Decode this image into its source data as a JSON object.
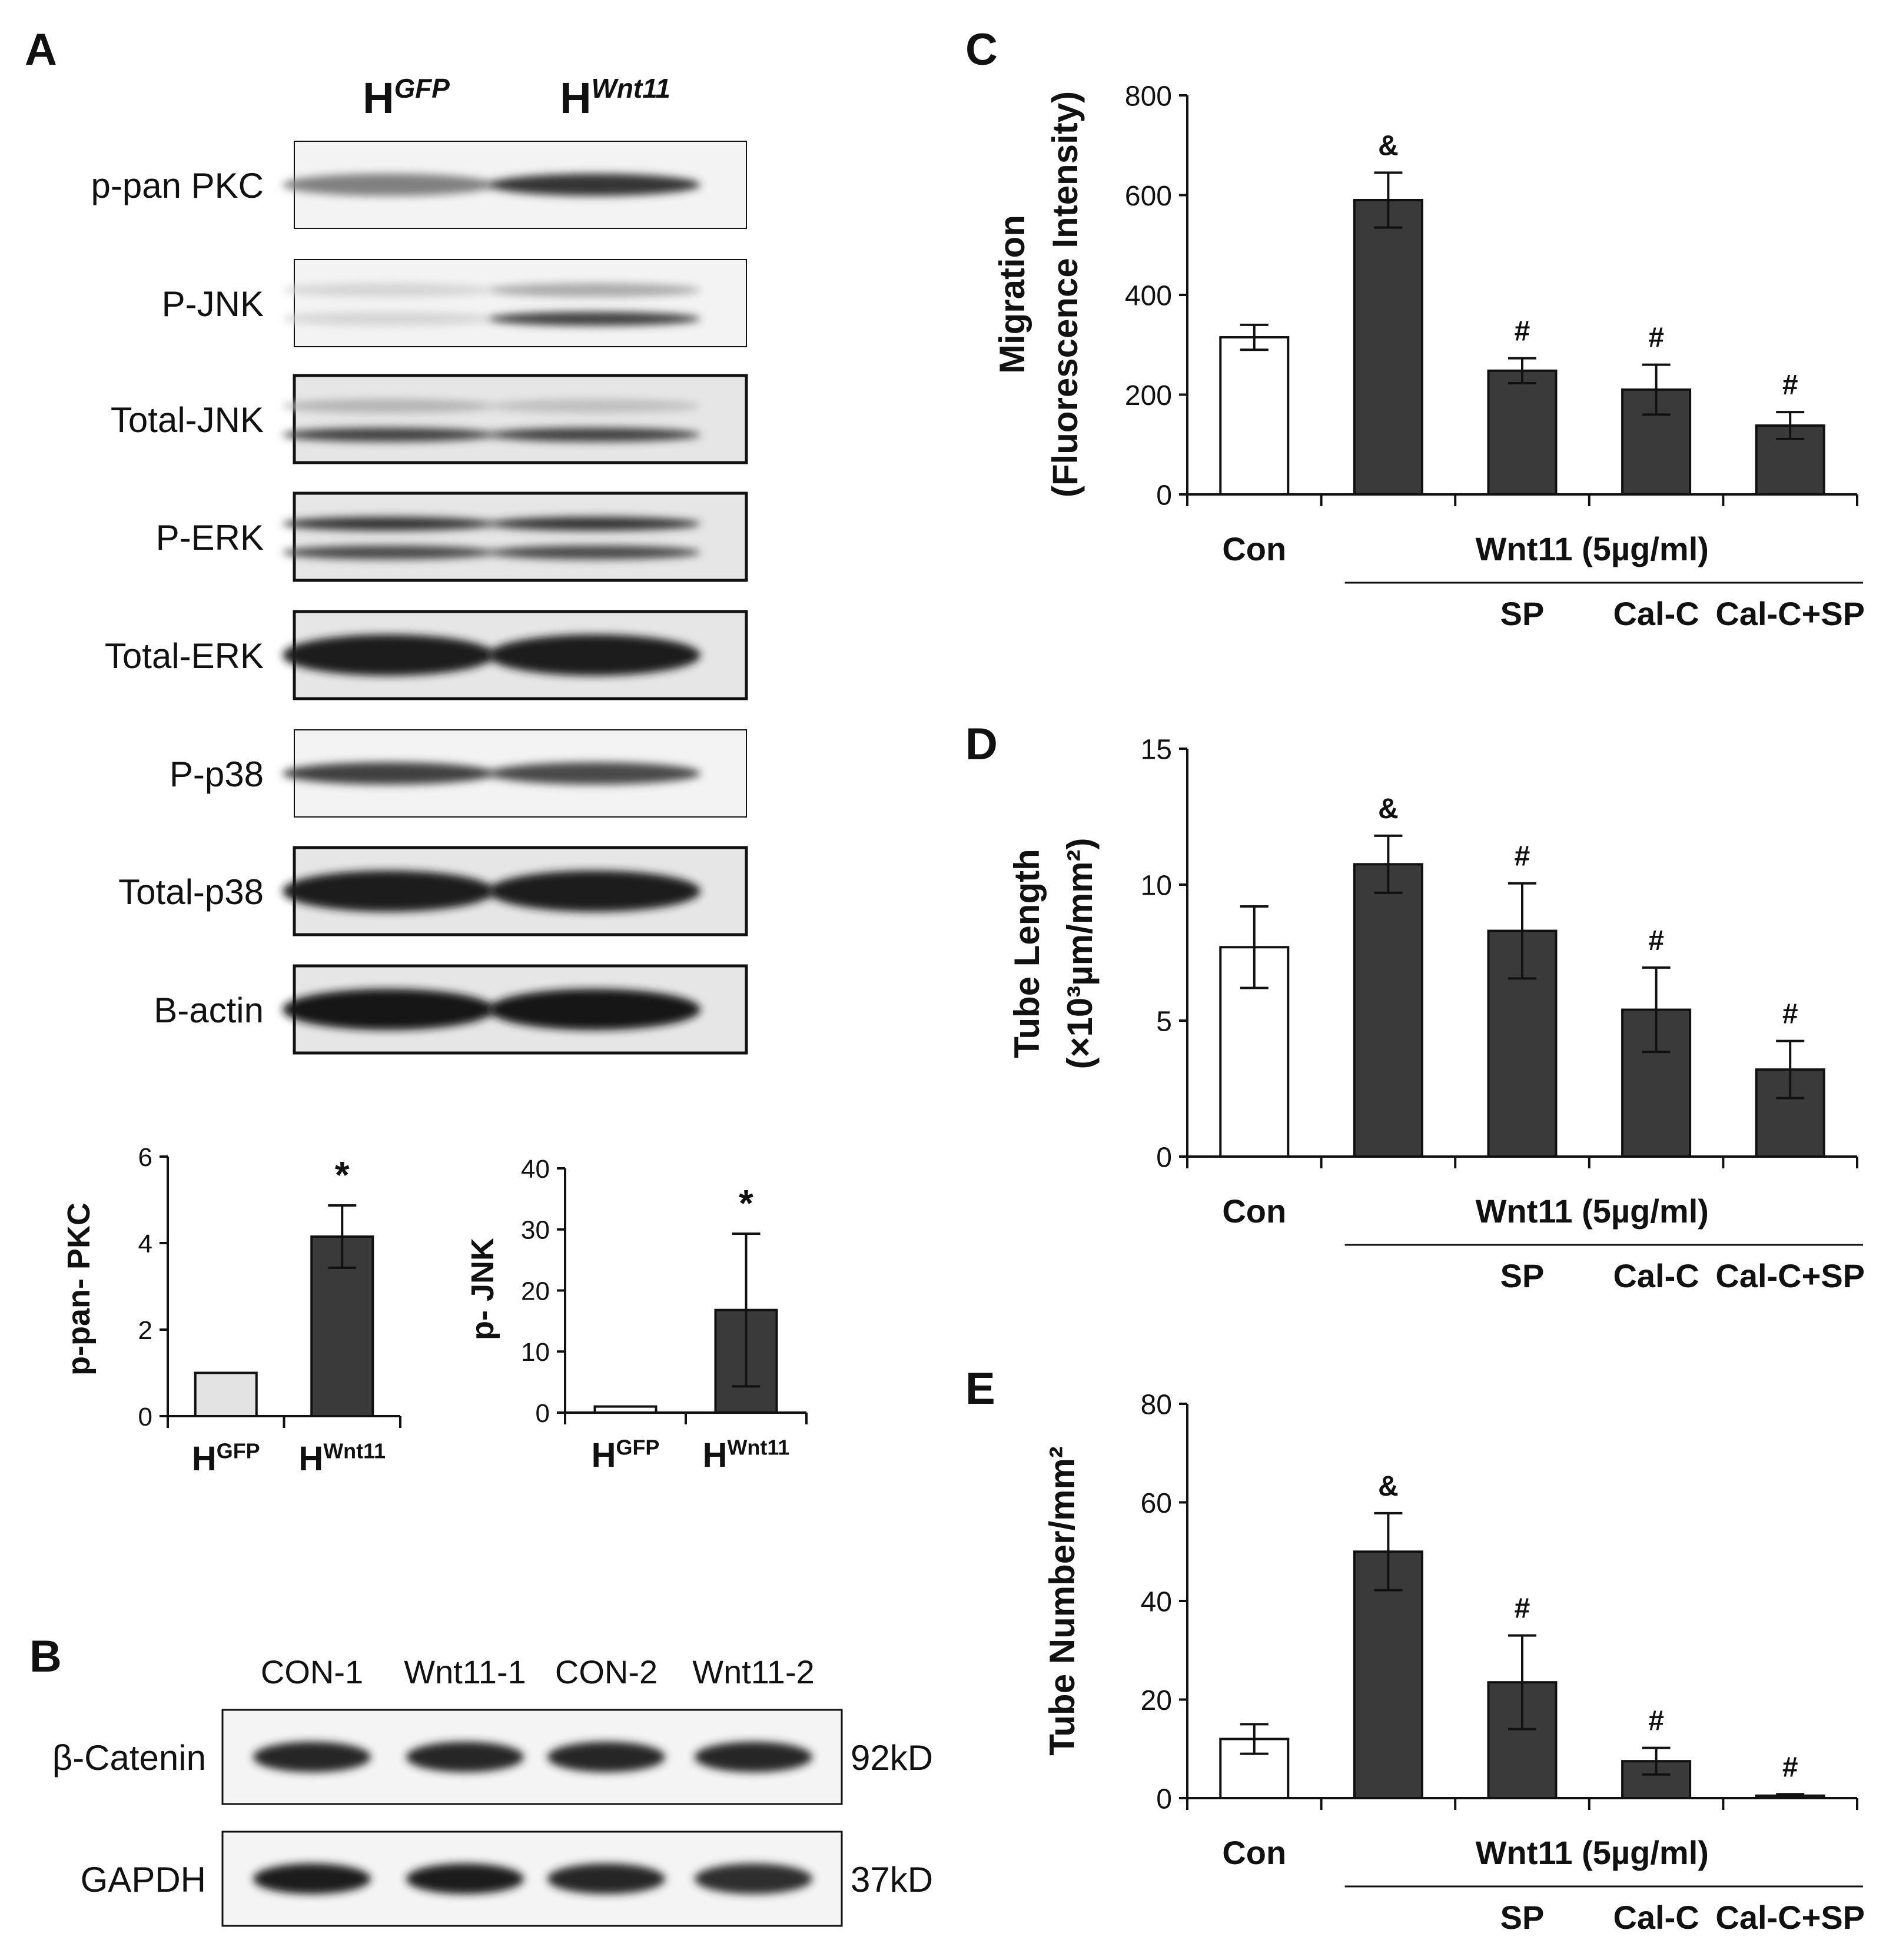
{
  "panels": {
    "A": {
      "letter": "A",
      "lanes": [
        {
          "base": "H",
          "sup": "GFP"
        },
        {
          "base": "H",
          "sup": "Wnt11"
        }
      ],
      "blots": [
        {
          "label": "p-pan PKC",
          "bands": [
            [
              0.5,
              0.85
            ]
          ]
        },
        {
          "label": "P-JNK",
          "bands": [
            [
              0.1,
              0.3
            ],
            [
              0.1,
              0.8
            ]
          ]
        },
        {
          "label": "Total-JNK",
          "bands": [
            [
              0.25,
              0.2
            ],
            [
              0.8,
              0.8
            ]
          ]
        },
        {
          "label": "P-ERK",
          "bands": [
            [
              0.85,
              0.85
            ],
            [
              0.75,
              0.75
            ]
          ]
        },
        {
          "label": "Total-ERK",
          "bands": [
            [
              0.95,
              0.95
            ]
          ]
        },
        {
          "label": "P-p38",
          "bands": [
            [
              0.8,
              0.75
            ]
          ]
        },
        {
          "label": "Total-p38",
          "bands": [
            [
              0.95,
              0.95
            ]
          ]
        },
        {
          "label": "B-actin",
          "bands": [
            [
              0.98,
              0.98
            ]
          ]
        }
      ]
    },
    "B": {
      "letter": "B",
      "lanes": [
        "CON-1",
        "Wnt11-1",
        "CON-2",
        "Wnt11-2"
      ],
      "blots": [
        {
          "label": "β-Catenin",
          "size": "92kD",
          "bands": [
            0.92,
            0.92,
            0.92,
            0.92
          ]
        },
        {
          "label": "GAPDH",
          "size": "37kD",
          "bands": [
            0.95,
            0.95,
            0.92,
            0.88
          ]
        }
      ]
    },
    "C": {
      "letter": "C"
    },
    "D": {
      "letter": "D"
    },
    "E": {
      "letter": "E"
    }
  },
  "chart_data": [
    {
      "id": "A-pkc",
      "type": "bar",
      "categories": [
        {
          "base": "H",
          "sup": "GFP"
        },
        {
          "base": "H",
          "sup": "Wnt11"
        }
      ],
      "values": [
        1.0,
        4.15
      ],
      "errors": [
        0,
        0.72
      ],
      "annotations": [
        "",
        "*"
      ],
      "fills": [
        "#e3e3e3",
        "#3a3a3a"
      ],
      "ylabel": "p-pan- PKC",
      "ylim": [
        0,
        6
      ],
      "yticks": [
        0,
        2,
        4,
        6
      ]
    },
    {
      "id": "A-jnk",
      "type": "bar",
      "categories": [
        {
          "base": "H",
          "sup": "GFP"
        },
        {
          "base": "H",
          "sup": "Wnt11"
        }
      ],
      "values": [
        1.0,
        16.8
      ],
      "errors": [
        0,
        12.5
      ],
      "annotations": [
        "",
        "*"
      ],
      "fills": [
        "#ffffff",
        "#3a3a3a"
      ],
      "ylabel": "p- JNK",
      "ylim": [
        0,
        40
      ],
      "yticks": [
        0,
        10,
        20,
        30,
        40
      ]
    },
    {
      "id": "C",
      "type": "bar",
      "categories": [
        "Con",
        "Wnt11",
        "SP",
        "Cal-C",
        "Cal-C+SP"
      ],
      "values": [
        315,
        590,
        248,
        210,
        138
      ],
      "errors": [
        25,
        55,
        25,
        50,
        27
      ],
      "annotations": [
        "",
        "&",
        "#",
        "#",
        "#"
      ],
      "fills": [
        "#ffffff",
        "#3a3a3a",
        "#3a3a3a",
        "#3a3a3a",
        "#3a3a3a"
      ],
      "ylabel": [
        "Migration",
        "(Fluorescence Intensity)"
      ],
      "ylim": [
        0,
        800
      ],
      "yticks": [
        0,
        200,
        400,
        600,
        800
      ],
      "xlabels": {
        "con": "Con",
        "group": "Wnt11  (5µg/ml)",
        "subs": [
          "SP",
          "Cal-C",
          "Cal-C+SP"
        ]
      }
    },
    {
      "id": "D",
      "type": "bar",
      "categories": [
        "Con",
        "Wnt11",
        "SP",
        "Cal-C",
        "Cal-C+SP"
      ],
      "values": [
        7.7,
        10.75,
        8.3,
        5.4,
        3.2
      ],
      "errors": [
        1.5,
        1.05,
        1.75,
        1.55,
        1.05
      ],
      "annotations": [
        "",
        "&",
        "#",
        "#",
        "#"
      ],
      "fills": [
        "#ffffff",
        "#3a3a3a",
        "#3a3a3a",
        "#3a3a3a",
        "#3a3a3a"
      ],
      "ylabel": [
        "Tube Length",
        "(×10³µm/mm²)"
      ],
      "ylim": [
        0,
        15
      ],
      "yticks": [
        0,
        5,
        10,
        15
      ],
      "xlabels": {
        "con": "Con",
        "group": "Wnt11  (5µg/ml)",
        "subs": [
          "SP",
          "Cal-C",
          "Cal-C+SP"
        ]
      }
    },
    {
      "id": "E",
      "type": "bar",
      "categories": [
        "Con",
        "Wnt11",
        "SP",
        "Cal-C",
        "Cal-C+SP"
      ],
      "values": [
        12,
        50,
        23.5,
        7.5,
        0.5
      ],
      "errors": [
        3,
        7.8,
        9.5,
        2.7,
        0.3
      ],
      "annotations": [
        "",
        "&",
        "#",
        "#",
        "#"
      ],
      "fills": [
        "#ffffff",
        "#3a3a3a",
        "#3a3a3a",
        "#3a3a3a",
        "#3a3a3a"
      ],
      "ylabel": [
        "Tube Number/mm²"
      ],
      "ylim": [
        0,
        80
      ],
      "yticks": [
        0,
        20,
        40,
        60,
        80
      ],
      "xlabels": {
        "con": "Con",
        "group": "Wnt11  (5µg/ml)",
        "subs": [
          "SP",
          "Cal-C",
          "Cal-C+SP"
        ]
      }
    }
  ]
}
